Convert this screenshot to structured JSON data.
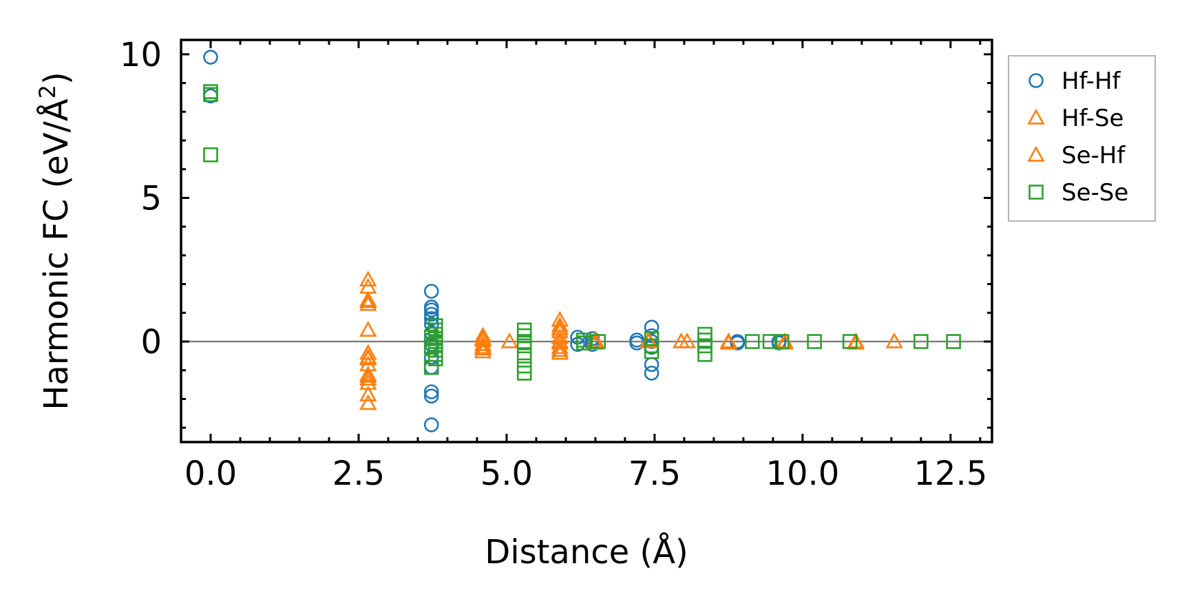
{
  "chart_data": {
    "type": "scatter",
    "xlabel": "Distance (Å)",
    "ylabel_main": "Harmonic FC (eV/Å",
    "ylabel_sup": "2",
    "ylabel_close": ")",
    "xlim": [
      -0.5,
      13.2
    ],
    "ylim": [
      -3.5,
      10.5
    ],
    "xticks": [
      0.0,
      2.5,
      5.0,
      7.5,
      10.0,
      12.5
    ],
    "xtick_labels": [
      "0.0",
      "2.5",
      "5.0",
      "7.5",
      "10.0",
      "12.5"
    ],
    "yticks": [
      0,
      5,
      10
    ],
    "ytick_labels": [
      "0",
      "5",
      "10"
    ],
    "zero_line": 0,
    "legend_position": "outside-right-top",
    "series": [
      {
        "name": "Hf-Hf",
        "marker": "circle",
        "color": "#1f77b4",
        "points": [
          [
            0,
            9.9
          ],
          [
            0,
            8.55
          ],
          [
            3.73,
            1.75
          ],
          [
            3.73,
            1.2
          ],
          [
            3.73,
            1.1
          ],
          [
            3.73,
            0.95
          ],
          [
            3.73,
            0.8
          ],
          [
            3.73,
            0.6
          ],
          [
            3.73,
            0.3
          ],
          [
            3.73,
            0.1
          ],
          [
            3.73,
            -0.1
          ],
          [
            3.73,
            -0.3
          ],
          [
            3.73,
            -0.55
          ],
          [
            3.73,
            -0.9
          ],
          [
            3.73,
            -1.75
          ],
          [
            3.73,
            -1.9
          ],
          [
            3.73,
            -2.9
          ],
          [
            6.2,
            0.15
          ],
          [
            6.2,
            -0.1
          ],
          [
            6.45,
            0.1
          ],
          [
            6.45,
            -0.1
          ],
          [
            6.45,
            0.0
          ],
          [
            7.2,
            0.05
          ],
          [
            7.2,
            -0.05
          ],
          [
            7.45,
            0.5
          ],
          [
            7.45,
            0.2
          ],
          [
            7.45,
            0.0
          ],
          [
            7.45,
            -0.2
          ],
          [
            7.45,
            -0.8
          ],
          [
            7.45,
            -1.1
          ],
          [
            8.9,
            0.0
          ],
          [
            8.9,
            -0.05
          ],
          [
            9.6,
            0.0
          ],
          [
            9.6,
            -0.05
          ]
        ]
      },
      {
        "name": "Hf-Se",
        "marker": "triangle",
        "color": "#ff7f0e",
        "points": [
          [
            2.66,
            2.15
          ],
          [
            2.66,
            1.9
          ],
          [
            2.66,
            1.45
          ],
          [
            2.66,
            1.3
          ],
          [
            2.66,
            0.4
          ],
          [
            2.66,
            -0.4
          ],
          [
            2.66,
            -0.55
          ],
          [
            2.66,
            -0.8
          ],
          [
            2.66,
            -1.15
          ],
          [
            2.66,
            -1.3
          ],
          [
            2.66,
            -1.45
          ],
          [
            2.66,
            -1.85
          ],
          [
            2.66,
            -2.15
          ],
          [
            4.6,
            0.2
          ],
          [
            4.6,
            0.05
          ],
          [
            4.6,
            -0.1
          ],
          [
            4.6,
            -0.25
          ],
          [
            4.6,
            -0.35
          ],
          [
            5.05,
            0.0
          ],
          [
            5.9,
            0.75
          ],
          [
            5.9,
            0.55
          ],
          [
            5.9,
            0.35
          ],
          [
            5.9,
            0.15
          ],
          [
            5.9,
            -0.05
          ],
          [
            5.9,
            -0.2
          ],
          [
            5.9,
            -0.4
          ],
          [
            6.5,
            0.05
          ],
          [
            7.4,
            0.0
          ],
          [
            7.95,
            0.0
          ],
          [
            8.05,
            0.0
          ],
          [
            8.75,
            0.0
          ],
          [
            9.7,
            0.0
          ],
          [
            10.9,
            0.0
          ],
          [
            11.55,
            0.0
          ]
        ]
      },
      {
        "name": "Se-Hf",
        "marker": "triangle",
        "color": "#ff7f0e",
        "points": [
          [
            2.66,
            1.4
          ],
          [
            2.66,
            -0.6
          ],
          [
            2.66,
            -1.2
          ],
          [
            4.6,
            0.1
          ],
          [
            4.6,
            -0.2
          ],
          [
            5.9,
            0.45
          ],
          [
            5.9,
            0.0
          ],
          [
            5.9,
            -0.3
          ],
          [
            6.5,
            -0.05
          ],
          [
            7.4,
            0.05
          ],
          [
            8.75,
            -0.05
          ],
          [
            9.7,
            -0.05
          ],
          [
            10.9,
            -0.05
          ]
        ]
      },
      {
        "name": "Se-Se",
        "marker": "square",
        "color": "#2ca02c",
        "points": [
          [
            0,
            8.7
          ],
          [
            0,
            8.6
          ],
          [
            0,
            6.5
          ],
          [
            3.8,
            0.55
          ],
          [
            3.8,
            0.4
          ],
          [
            3.8,
            0.25
          ],
          [
            3.8,
            0.1
          ],
          [
            3.8,
            0.0
          ],
          [
            3.8,
            -0.1
          ],
          [
            3.8,
            -0.3
          ],
          [
            3.8,
            -0.45
          ],
          [
            3.8,
            -0.6
          ],
          [
            3.73,
            0.15
          ],
          [
            3.73,
            -0.2
          ],
          [
            3.73,
            -0.9
          ],
          [
            5.3,
            0.4
          ],
          [
            5.3,
            0.2
          ],
          [
            5.3,
            0.0
          ],
          [
            5.3,
            -0.15
          ],
          [
            5.3,
            -0.5
          ],
          [
            5.3,
            -0.85
          ],
          [
            5.3,
            -1.1
          ],
          [
            6.3,
            0.05
          ],
          [
            6.3,
            -0.05
          ],
          [
            6.55,
            0.0
          ],
          [
            7.45,
            0.1
          ],
          [
            7.45,
            -0.15
          ],
          [
            7.45,
            -0.35
          ],
          [
            8.35,
            0.25
          ],
          [
            8.35,
            0.05
          ],
          [
            8.35,
            -0.15
          ],
          [
            8.35,
            -0.45
          ],
          [
            9.15,
            0.0
          ],
          [
            9.45,
            0.0
          ],
          [
            9.65,
            0.0
          ],
          [
            10.2,
            0.0
          ],
          [
            10.8,
            0.0
          ],
          [
            12.0,
            0.0
          ],
          [
            12.55,
            0.0
          ]
        ]
      }
    ]
  }
}
